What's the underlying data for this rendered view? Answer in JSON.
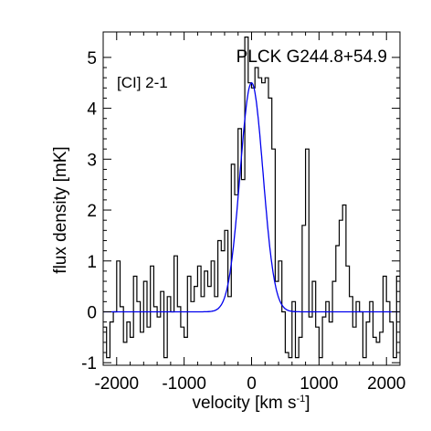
{
  "chart_data": {
    "type": "line",
    "title": "PLCK G244.8+54.9",
    "annotation": "[CI] 2-1",
    "xlabel": "velocity [km s",
    "xlabel_sup": "-1",
    "xlabel_suffix": "]",
    "ylabel": "flux density [mK]",
    "xlim": [
      -2200,
      2200
    ],
    "ylim": [
      -1.05,
      5.5
    ],
    "x_ticks": [
      -2000,
      -1000,
      0,
      1000,
      2000
    ],
    "x_tick_labels": [
      "-2000",
      "-1000",
      "0",
      "1000",
      "2000"
    ],
    "y_ticks": [
      -1,
      0,
      1,
      2,
      3,
      4,
      5
    ],
    "y_tick_labels": [
      "-1",
      "0",
      "1",
      "2",
      "3",
      "4",
      "5"
    ],
    "grid": false,
    "series": [
      {
        "style": "steps",
        "color": "#000000",
        "x": [
          -2200,
          -2150,
          -2100,
          -2050,
          -2000,
          -1950,
          -1900,
          -1850,
          -1800,
          -1750,
          -1700,
          -1650,
          -1600,
          -1550,
          -1500,
          -1450,
          -1400,
          -1350,
          -1300,
          -1250,
          -1200,
          -1150,
          -1100,
          -1050,
          -1000,
          -950,
          -900,
          -850,
          -800,
          -750,
          -700,
          -650,
          -600,
          -550,
          -500,
          -450,
          -400,
          -350,
          -300,
          -250,
          -200,
          -150,
          -100,
          -50,
          0,
          50,
          100,
          150,
          200,
          250,
          300,
          350,
          400,
          450,
          500,
          550,
          600,
          650,
          700,
          750,
          800,
          850,
          900,
          950,
          1000,
          1050,
          1100,
          1150,
          1200,
          1250,
          1300,
          1350,
          1400,
          1450,
          1500,
          1550,
          1600,
          1650,
          1700,
          1750,
          1800,
          1850,
          1900,
          1950,
          2000,
          2050,
          2100,
          2150
        ],
        "y": [
          -0.3,
          -0.9,
          -0.2,
          0.0,
          1.0,
          0.1,
          -0.6,
          -0.2,
          -0.5,
          0.7,
          0.2,
          -0.4,
          0.6,
          -0.3,
          0.9,
          0.1,
          -0.1,
          0.4,
          -0.9,
          0.3,
          0.0,
          1.1,
          0.1,
          -0.3,
          -0.5,
          0.7,
          0.2,
          0.5,
          0.9,
          0.3,
          0.8,
          0.5,
          1.0,
          0.3,
          1.4,
          1.2,
          1.6,
          0.3,
          2.9,
          2.3,
          3.6,
          2.6,
          5.4,
          4.5,
          4.4,
          4.8,
          4.6,
          4.5,
          4.6,
          4.2,
          3.2,
          0.6,
          1.0,
          0.0,
          -0.8,
          -0.9,
          0.2,
          -0.9,
          -0.5,
          1.7,
          3.2,
          -0.1,
          0.6,
          -0.3,
          -0.9,
          -0.1,
          0.2,
          -0.2,
          0.6,
          1.3,
          1.8,
          2.1,
          0.9,
          0.3,
          -0.3,
          0.2,
          0.0,
          -0.9,
          -0.2,
          0.2,
          -0.5,
          -0.6,
          -0.4,
          0.7,
          0.2,
          -0.2,
          -0.9,
          0.7
        ]
      },
      {
        "style": "gaussian",
        "color": "#0000ee",
        "amplitude": 4.5,
        "center": 0,
        "sigma": 170,
        "baseline": 0
      }
    ]
  }
}
